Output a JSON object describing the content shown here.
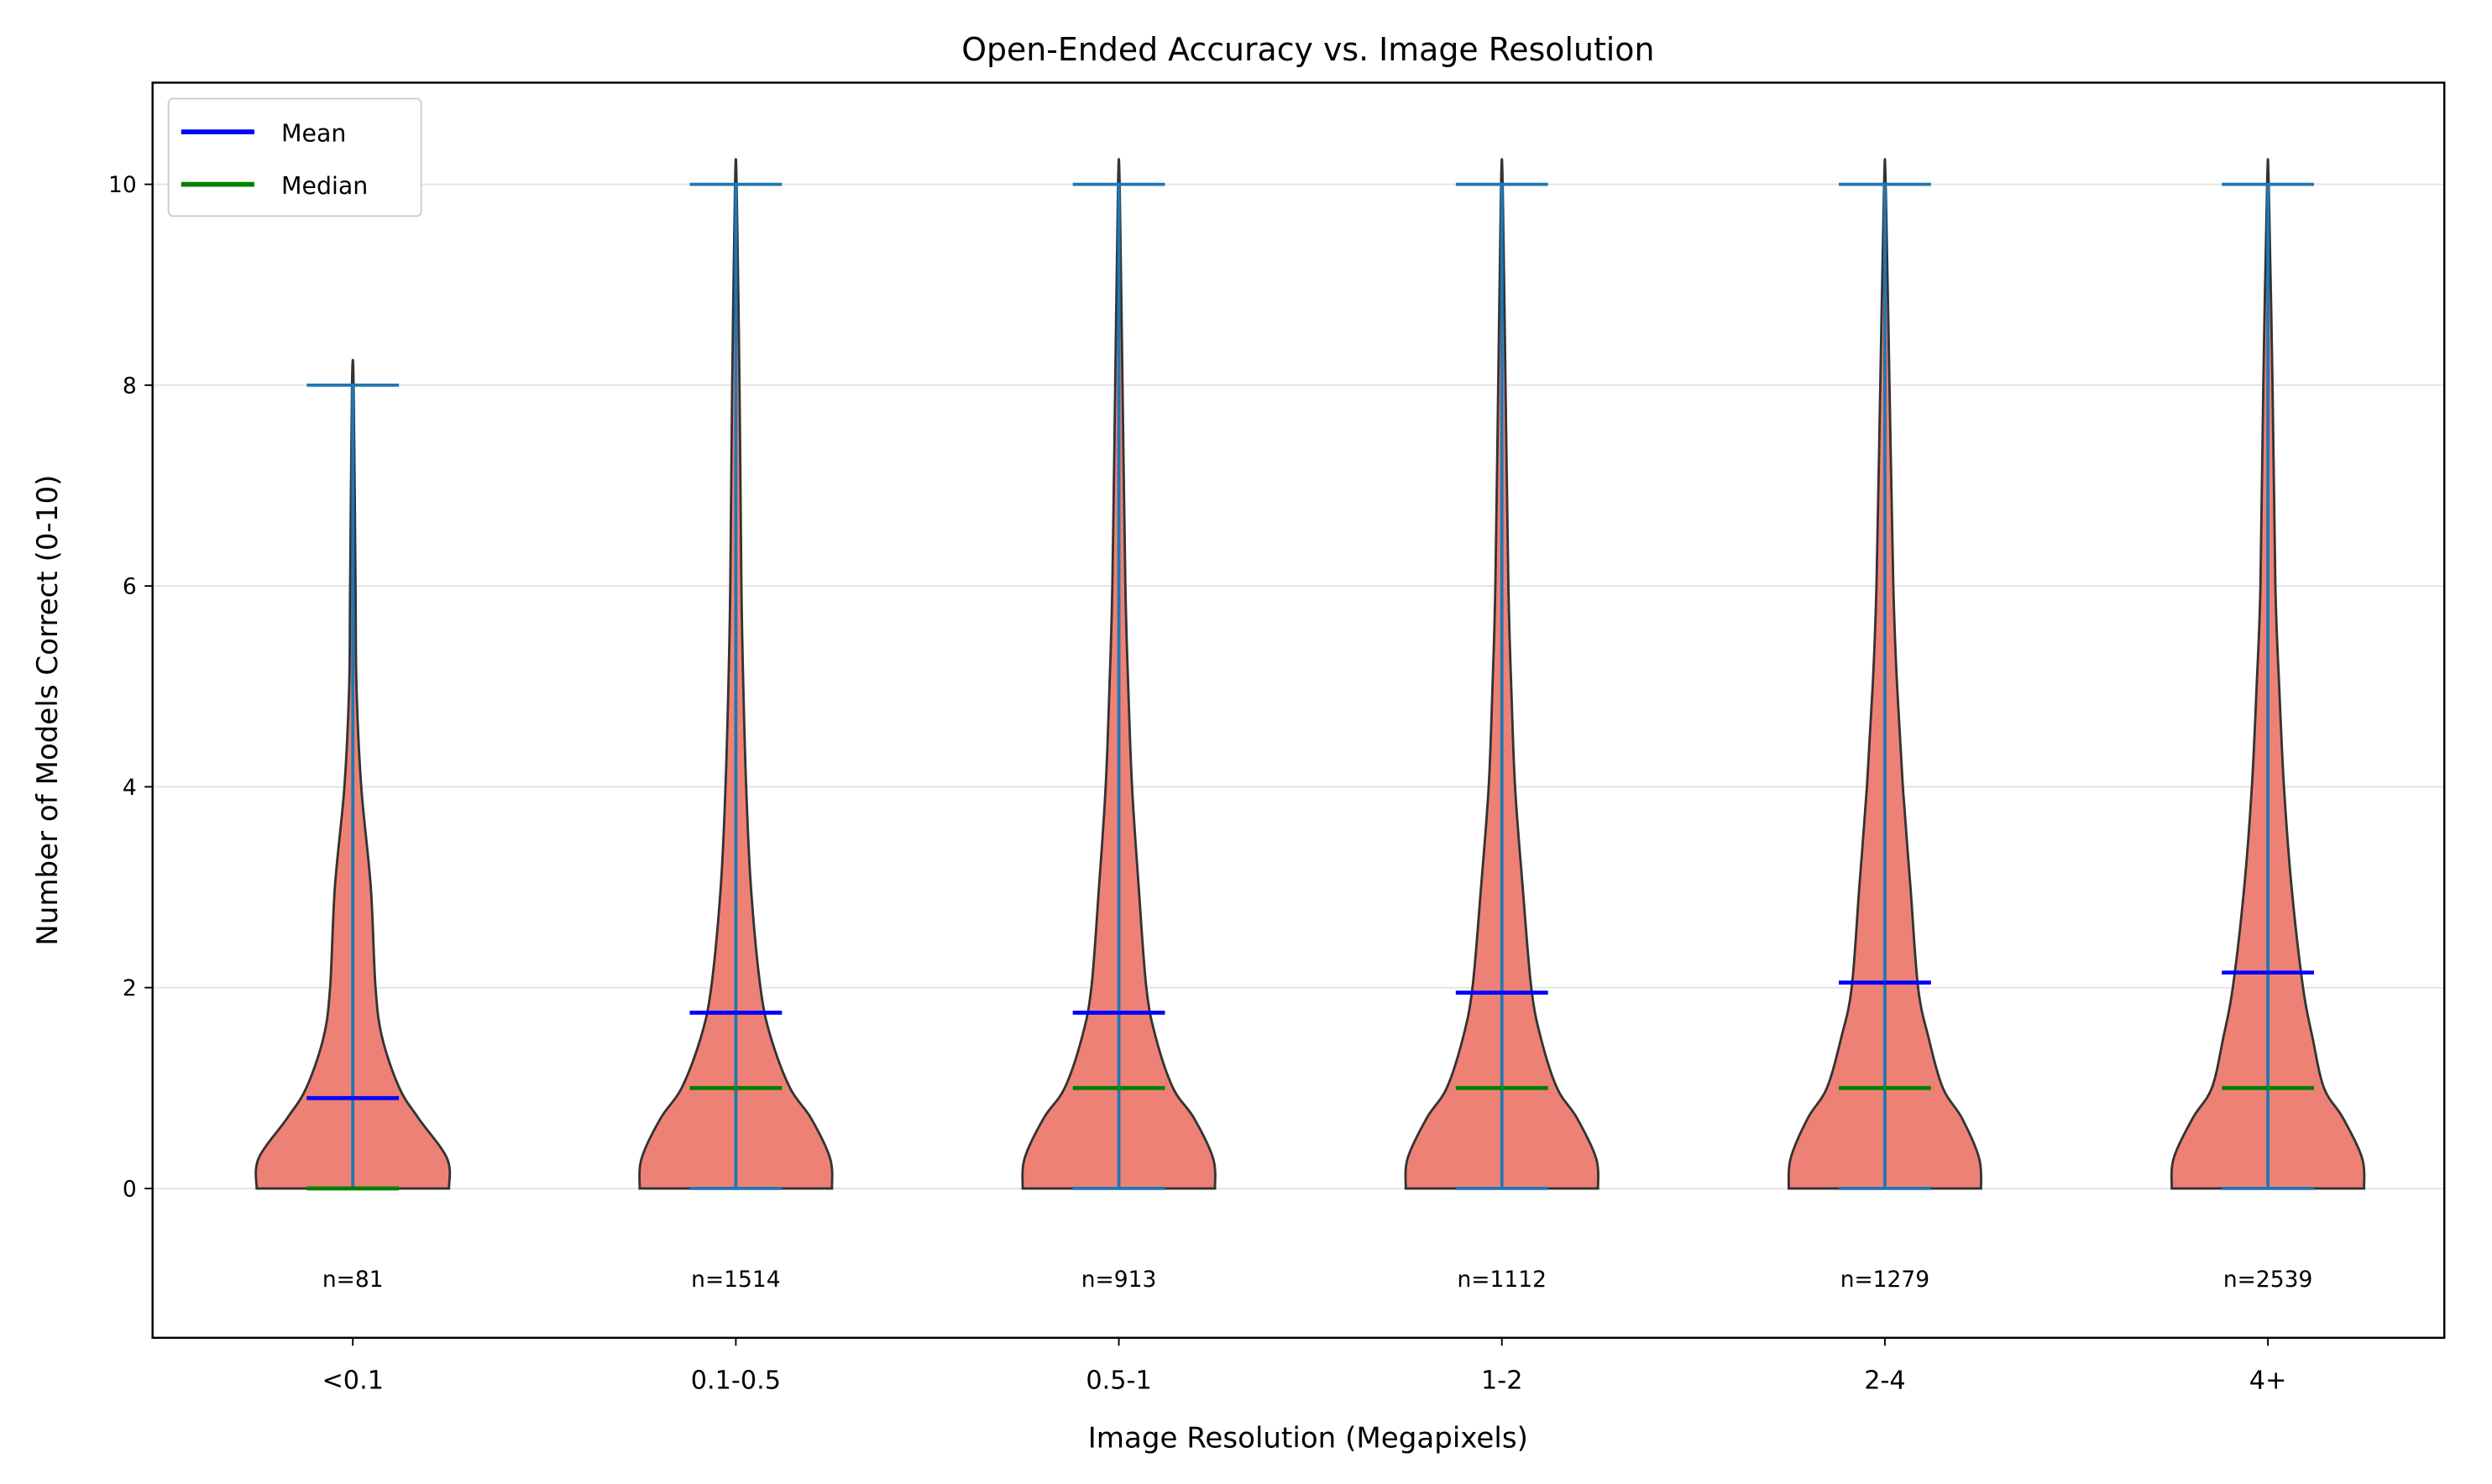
{
  "chart_data": {
    "type": "violin",
    "title": "Open-Ended Accuracy vs. Image Resolution",
    "xlabel": "Image Resolution (Megapixels)",
    "ylabel": "Number of Models Correct (0-10)",
    "ylim": [
      -1.5,
      11
    ],
    "yticks": [
      0,
      2,
      4,
      6,
      8,
      10
    ],
    "grid": "y",
    "legend": {
      "position": "top-left",
      "entries": [
        {
          "name": "Mean",
          "color": "#0000ff"
        },
        {
          "name": "Median",
          "color": "#008000"
        }
      ]
    },
    "colors": {
      "violin_fill": "#ee8175",
      "violin_edge": "#333333",
      "extrema": "#1f77b4"
    },
    "categories": [
      "<0.1",
      "0.1-0.5",
      "0.5-1",
      "1-2",
      "2-4",
      "4+"
    ],
    "counts": [
      "n=81",
      "n=1514",
      "n=913",
      "n=1112",
      "n=1279",
      "n=2539"
    ],
    "min": [
      0,
      0,
      0,
      0,
      0,
      0
    ],
    "max": [
      8,
      10,
      10,
      10,
      10,
      10
    ],
    "mean": [
      0.9,
      1.75,
      1.75,
      1.95,
      2.05,
      2.15
    ],
    "median": [
      0,
      1,
      1,
      1,
      1,
      1
    ],
    "density_levels": [
      0,
      0.3,
      0.7,
      1,
      1.5,
      2,
      3,
      4,
      5,
      6,
      8,
      10
    ],
    "density_relative_width": [
      [
        1.0,
        0.98,
        0.68,
        0.48,
        0.3,
        0.23,
        0.18,
        0.08,
        0.03,
        0.02,
        0.0,
        0.0
      ],
      [
        1.0,
        0.98,
        0.78,
        0.56,
        0.36,
        0.25,
        0.15,
        0.1,
        0.07,
        0.05,
        0.03,
        0.0
      ],
      [
        1.0,
        0.98,
        0.78,
        0.56,
        0.38,
        0.28,
        0.2,
        0.13,
        0.09,
        0.06,
        0.03,
        0.0
      ],
      [
        1.0,
        0.98,
        0.78,
        0.57,
        0.4,
        0.3,
        0.21,
        0.13,
        0.09,
        0.06,
        0.03,
        0.0
      ],
      [
        1.0,
        0.98,
        0.8,
        0.6,
        0.45,
        0.34,
        0.26,
        0.18,
        0.12,
        0.08,
        0.04,
        0.0
      ],
      [
        1.0,
        0.98,
        0.78,
        0.58,
        0.46,
        0.36,
        0.24,
        0.16,
        0.11,
        0.07,
        0.04,
        0.0
      ]
    ]
  }
}
